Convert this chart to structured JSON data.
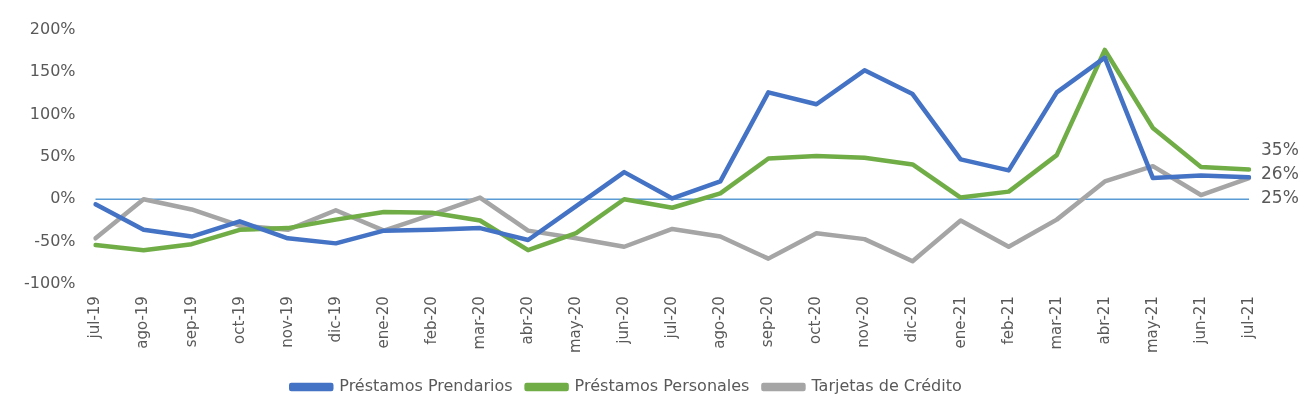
{
  "chart_data": {
    "type": "line",
    "categories": [
      "jul-19",
      "ago-19",
      "sep-19",
      "oct-19",
      "nov-19",
      "dic-19",
      "ene-20",
      "feb-20",
      "mar-20",
      "abr-20",
      "may-20",
      "jun-20",
      "jul-20",
      "ago-20",
      "sep-20",
      "oct-20",
      "nov-20",
      "dic-20",
      "ene-21",
      "feb-21",
      "mar-21",
      "abr-21",
      "may-21",
      "jun-21",
      "jul-21"
    ],
    "series": [
      {
        "name": "Préstamos Prendarios",
        "color": "#4472c4",
        "values": [
          -6,
          -36,
          -44,
          -26,
          -46,
          -52,
          -37,
          -36,
          -34,
          -48,
          -8,
          32,
          1,
          21,
          126,
          112,
          152,
          124,
          47,
          34,
          126,
          167,
          25,
          28,
          26
        ],
        "value_labels": [
          null,
          null,
          null,
          null,
          null,
          null,
          null,
          null,
          null,
          null,
          null,
          null,
          null,
          null,
          null,
          null,
          null,
          null,
          null,
          null,
          null,
          null,
          null,
          null,
          "26%"
        ]
      },
      {
        "name": "Préstamos Personales",
        "color": "#70ad47",
        "values": [
          -54,
          -60,
          -53,
          -36,
          -34,
          -24,
          -15,
          -16,
          -25,
          -60,
          -40,
          0,
          -10,
          7,
          48,
          51,
          49,
          41,
          2,
          9,
          52,
          176,
          84,
          38,
          35
        ],
        "value_labels": [
          null,
          null,
          null,
          null,
          null,
          null,
          null,
          null,
          null,
          null,
          null,
          null,
          null,
          null,
          null,
          null,
          null,
          null,
          null,
          null,
          null,
          null,
          null,
          null,
          "35%"
        ]
      },
      {
        "name": "Tarjetas de Crédito",
        "color": "#a5a5a5",
        "values": [
          -46,
          0,
          -12,
          -31,
          -36,
          -13,
          -37,
          -18,
          2,
          -37,
          -46,
          -56,
          -35,
          -44,
          -70,
          -40,
          -47,
          -73,
          -25,
          -56,
          -24,
          21,
          39,
          5,
          25
        ],
        "value_labels": [
          null,
          null,
          null,
          null,
          null,
          null,
          null,
          null,
          null,
          null,
          null,
          null,
          null,
          null,
          null,
          null,
          null,
          null,
          null,
          null,
          null,
          null,
          null,
          null,
          "25%"
        ]
      }
    ],
    "ylim": [
      -100,
      200
    ],
    "yticks": [
      {
        "value": -100,
        "label": "-100%"
      },
      {
        "value": -50,
        "label": "-50%"
      },
      {
        "value": 0,
        "label": "0%"
      },
      {
        "value": 50,
        "label": "50%"
      },
      {
        "value": 100,
        "label": "100%"
      },
      {
        "value": 150,
        "label": "150%"
      },
      {
        "value": 200,
        "label": "200%"
      }
    ],
    "ref_lines": [
      {
        "axis": "y",
        "value": 0,
        "color": "#5b9bd5"
      }
    ],
    "grid": false,
    "legend": "bottom",
    "marker": "none",
    "line_style": "solid"
  }
}
